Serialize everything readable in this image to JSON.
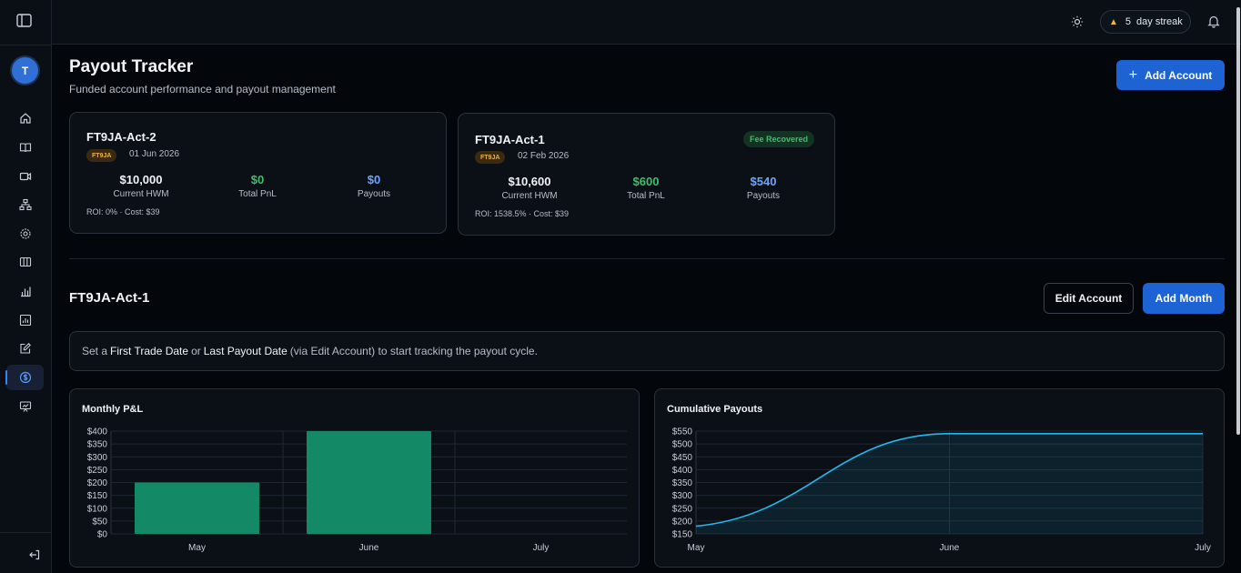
{
  "sidebar": {
    "avatar_initial": "T",
    "nav": [
      "home-icon",
      "book-icon",
      "video-icon",
      "network-icon",
      "settings-icon",
      "columns-icon",
      "bar-chart-icon",
      "report-icon",
      "edit-icon",
      "dollar-icon",
      "presentation-icon"
    ],
    "active": "dollar-icon"
  },
  "topbar": {
    "streak_count": "5",
    "streak_label": "day streak"
  },
  "header": {
    "title": "Payout Tracker",
    "subtitle": "Funded account performance and payout management",
    "add_account_label": "Add Account"
  },
  "accounts": [
    {
      "name": "FT9JA-Act-2",
      "firm": "FT9JA",
      "date": "01 Jun 2026",
      "hwm": "$10,000",
      "hwm_label": "Current HWM",
      "pnl": "$0",
      "pnl_label": "Total PnL",
      "payouts": "$0",
      "payouts_label": "Payouts",
      "roi": "ROI: 0% · Cost: $39",
      "status": ""
    },
    {
      "name": "FT9JA-Act-1",
      "firm": "FT9JA",
      "date": "02 Feb 2026",
      "hwm": "$10,600",
      "hwm_label": "Current HWM",
      "pnl": "$600",
      "pnl_label": "Total PnL",
      "payouts": "$540",
      "payouts_label": "Payouts",
      "roi": "ROI: 1538.5% · Cost: $39",
      "status": "Fee Recovered"
    }
  ],
  "detail": {
    "title": "FT9JA-Act-1",
    "edit_label": "Edit Account",
    "add_month_label": "Add Month",
    "notice": {
      "pre": "Set a",
      "first": "First Trade Date",
      "or": "or",
      "last": "Last Payout Date",
      "post": "(via Edit Account) to start tracking the payout cycle."
    }
  },
  "colors": {
    "accent": "#1d63d4",
    "positive": "#3fbf6c",
    "payout_blue": "#6aa5ff",
    "bar": "#138a65",
    "line": "#22b8f0"
  },
  "chart_data": [
    {
      "type": "bar",
      "title": "Monthly P&L",
      "categories": [
        "May",
        "June",
        "July"
      ],
      "values": [
        200,
        400,
        0
      ],
      "ylim": [
        0,
        400
      ],
      "yticks": [
        "$400",
        "$350",
        "$300",
        "$250",
        "$200",
        "$150",
        "$100",
        "$50",
        "$0"
      ],
      "grid": true
    },
    {
      "type": "area",
      "title": "Cumulative Payouts",
      "categories": [
        "May",
        "June",
        "July"
      ],
      "values": [
        180,
        540,
        540
      ],
      "ylim": [
        150,
        550
      ],
      "yticks": [
        "$550",
        "$500",
        "$450",
        "$400",
        "$350",
        "$300",
        "$250",
        "$200",
        "$150"
      ],
      "grid": true
    }
  ]
}
